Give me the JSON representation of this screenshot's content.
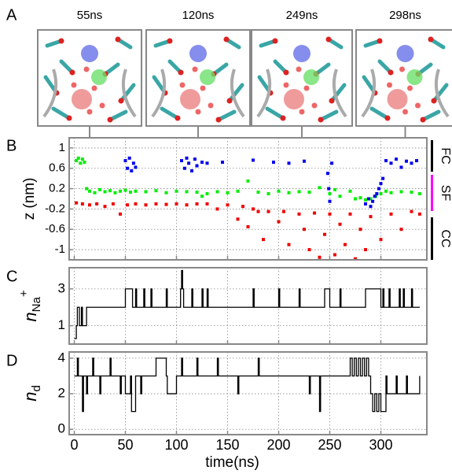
{
  "panel_labels": [
    "A",
    "B",
    "C",
    "D"
  ],
  "snapshots": [
    {
      "label": "55ns"
    },
    {
      "label": "120ns"
    },
    {
      "label": "249ns"
    },
    {
      "label": "298ns"
    }
  ],
  "region_labels": [
    "FC",
    "SF",
    "CC"
  ],
  "chart_data": [
    {
      "type": "scatter",
      "ylabel": "z (nm)",
      "xlim": [
        -5,
        345
      ],
      "xticks": [
        0,
        50,
        100,
        150,
        200,
        250,
        300
      ],
      "ylim": [
        -1.2,
        1.2
      ],
      "yticks": [
        1,
        0.6,
        0.2,
        -0.2,
        -0.6,
        -1
      ],
      "grid": true,
      "series": [
        {
          "color": "#00ee00",
          "x": [
            2,
            4,
            6,
            8,
            10,
            12,
            15,
            20,
            25,
            30,
            35,
            40,
            45,
            50,
            55,
            60,
            70,
            80,
            90,
            100,
            110,
            120,
            125,
            130,
            140,
            150,
            160,
            170,
            180,
            190,
            200,
            210,
            220,
            230,
            240,
            250,
            255,
            260,
            270,
            275,
            280,
            285,
            290,
            295,
            300,
            305,
            310,
            320,
            330,
            338
          ],
          "values": [
            0.75,
            0.8,
            0.7,
            0.78,
            0.72,
            0.2,
            0.15,
            0.12,
            0.18,
            0.14,
            0.16,
            0.12,
            0.15,
            0.17,
            0.13,
            0.15,
            0.14,
            0.16,
            0.12,
            0.15,
            0.14,
            0.13,
            0.05,
            0.1,
            0.14,
            0.12,
            0.15,
            0.35,
            0.13,
            0.1,
            0.15,
            0.12,
            0.14,
            0.13,
            0.22,
            0.1,
            0.18,
            0.05,
            0.15,
            0.0,
            0.02,
            -0.02,
            0.0,
            0.05,
            0.1,
            0.15,
            0.12,
            0.14,
            0.13,
            0.1
          ]
        },
        {
          "color": "#ee0000",
          "x": [
            2,
            8,
            15,
            22,
            30,
            38,
            45,
            52,
            60,
            70,
            80,
            90,
            100,
            110,
            120,
            130,
            140,
            150,
            160,
            165,
            170,
            175,
            180,
            185,
            190,
            200,
            205,
            210,
            220,
            225,
            230,
            235,
            240,
            245,
            250,
            255,
            260,
            265,
            270,
            275,
            280,
            285,
            290,
            300,
            310,
            320,
            330,
            338
          ],
          "values": [
            -0.08,
            -0.1,
            -0.12,
            -0.1,
            -0.15,
            -0.1,
            -0.3,
            -0.12,
            -0.1,
            -0.12,
            -0.1,
            -0.11,
            -0.1,
            -0.12,
            -0.1,
            -0.1,
            -0.2,
            -0.12,
            -0.4,
            -0.15,
            -0.55,
            -0.2,
            -0.25,
            -0.8,
            -0.25,
            -0.45,
            -0.25,
            -0.9,
            -0.3,
            -0.6,
            -1.0,
            -0.28,
            -1.15,
            -0.7,
            -0.3,
            -1.1,
            -0.5,
            -0.9,
            -0.3,
            -1.18,
            -0.6,
            -1.0,
            -0.35,
            -0.8,
            -0.3,
            -0.6,
            -0.25,
            -0.3
          ]
        },
        {
          "color": "#0000ee",
          "x": [
            50,
            52,
            54,
            56,
            58,
            60,
            105,
            108,
            110,
            112,
            115,
            118,
            120,
            125,
            130,
            145,
            175,
            195,
            210,
            225,
            248,
            249,
            250,
            252,
            285,
            288,
            290,
            292,
            294,
            296,
            298,
            300,
            302,
            305,
            310,
            315,
            320,
            325,
            330,
            335
          ],
          "values": [
            0.75,
            0.6,
            0.8,
            0.55,
            0.7,
            0.62,
            0.75,
            0.6,
            0.8,
            0.7,
            0.55,
            0.78,
            0.65,
            0.72,
            0.7,
            0.72,
            0.76,
            0.72,
            0.7,
            0.74,
            0.5,
            0.2,
            -0.05,
            0.7,
            -0.1,
            0.0,
            -0.15,
            -0.05,
            0.05,
            0.1,
            0.2,
            0.3,
            0.4,
            0.75,
            0.7,
            0.78,
            0.62,
            0.74,
            0.7,
            0.75
          ]
        }
      ]
    },
    {
      "type": "step",
      "ylabel": {
        "symbol": "n",
        "subscript": "Na",
        "superscript": "+"
      },
      "xlim": [
        -5,
        345
      ],
      "xticks": [
        0,
        50,
        100,
        150,
        200,
        250,
        300
      ],
      "ylim": [
        0,
        4.15
      ],
      "yticks": [
        1,
        3
      ],
      "grid": true,
      "color": "#000000",
      "x": [
        0,
        2,
        3,
        5,
        7,
        8,
        12,
        50,
        57,
        60,
        61,
        68,
        69,
        75,
        76,
        90,
        91,
        104,
        105,
        106,
        107,
        115,
        116,
        125,
        126,
        130,
        131,
        175,
        176,
        200,
        201,
        220,
        221,
        245,
        250,
        260,
        261,
        285,
        300,
        302,
        303,
        308,
        309,
        318,
        319,
        322,
        323,
        330,
        331,
        338
      ],
      "values": [
        0.3,
        1,
        2,
        1,
        2,
        1,
        2,
        3,
        2,
        3,
        2,
        3,
        2,
        3,
        2,
        3,
        2,
        3,
        4,
        3,
        2,
        3,
        2,
        3,
        2,
        3,
        2,
        3,
        2,
        3,
        2,
        3,
        2,
        3,
        2,
        3,
        2,
        3,
        2,
        3,
        2,
        3,
        2,
        3,
        2,
        3,
        2,
        3,
        2,
        2
      ]
    },
    {
      "type": "step",
      "ylabel": {
        "symbol": "n",
        "subscript": "d"
      },
      "xlabel": "time(ns)",
      "xlim": [
        -5,
        345
      ],
      "xticks": [
        0,
        50,
        100,
        150,
        200,
        250,
        300
      ],
      "ylim": [
        -0.3,
        4.35
      ],
      "yticks": [
        0,
        2,
        4
      ],
      "grid": true,
      "color": "#000000",
      "x": [
        0,
        3,
        4,
        8,
        9,
        12,
        13,
        18,
        19,
        25,
        26,
        35,
        36,
        45,
        46,
        50,
        55,
        56,
        60,
        65,
        66,
        80,
        90,
        91,
        100,
        105,
        106,
        120,
        121,
        140,
        141,
        160,
        161,
        180,
        181,
        200,
        230,
        231,
        240,
        241,
        250,
        270,
        272,
        274,
        276,
        278,
        280,
        282,
        284,
        286,
        288,
        290,
        292,
        294,
        296,
        298,
        300,
        305,
        306,
        315,
        316,
        325,
        326,
        338
      ],
      "values": [
        3,
        4,
        3,
        1,
        3,
        2,
        3,
        4,
        3,
        2,
        3,
        4,
        3,
        2,
        3,
        2,
        3,
        1,
        3,
        2,
        3,
        4,
        3,
        2,
        3,
        4,
        3,
        4,
        3,
        4,
        3,
        2,
        3,
        4,
        3,
        3,
        2,
        3,
        1,
        3,
        3,
        4,
        3,
        4,
        3,
        4,
        3,
        4,
        3,
        4,
        3,
        2,
        1,
        2,
        1,
        2,
        1,
        3,
        2,
        3,
        2,
        3,
        2,
        3
      ]
    }
  ]
}
